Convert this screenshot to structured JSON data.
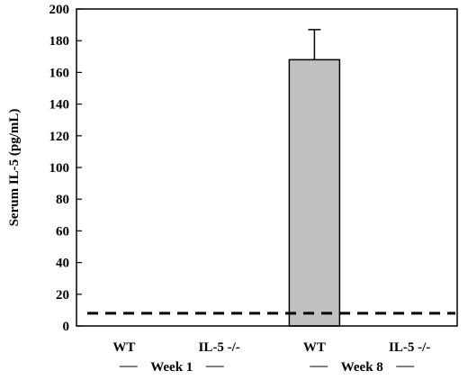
{
  "chart_data": {
    "type": "bar",
    "title": "",
    "xlabel": "",
    "ylabel": "Serum IL-5 (pg/mL)",
    "ylim": [
      0,
      200
    ],
    "yticks": [
      0,
      20,
      40,
      60,
      80,
      100,
      120,
      140,
      160,
      180,
      200
    ],
    "categories": [
      "WT",
      "IL-5 -/-",
      "WT",
      "IL-5 -/-"
    ],
    "groups": [
      {
        "label": "Week 1",
        "categories": [
          0,
          1
        ]
      },
      {
        "label": "Week 8",
        "categories": [
          2,
          3
        ]
      }
    ],
    "values": [
      0,
      0,
      168,
      0
    ],
    "error_upper": [
      0,
      0,
      187,
      0
    ],
    "reference_line": {
      "value": 8,
      "style": "dashed"
    },
    "bar_color": "#c0c0c0",
    "grid": false
  }
}
